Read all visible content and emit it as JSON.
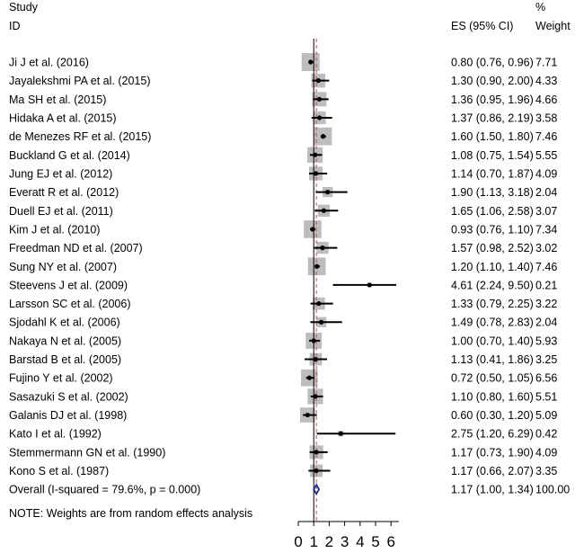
{
  "chart_data": {
    "type": "forest",
    "header": {
      "study_line1": "Study",
      "study_line2": "ID",
      "es_label": "ES (95% CI)",
      "weight_line1": "%",
      "weight_line2": "Weight"
    },
    "studies": [
      {
        "label": "Ji J et al. (2016)",
        "es": 0.8,
        "lo": 0.76,
        "hi": 0.96,
        "weight": 7.71,
        "ci_text": "0.80 (0.76, 0.96)",
        "weight_text": "7.71"
      },
      {
        "label": "Jayalekshmi PA et al. (2015)",
        "es": 1.3,
        "lo": 0.9,
        "hi": 2.0,
        "weight": 4.33,
        "ci_text": "1.30 (0.90, 2.00)",
        "weight_text": "4.33"
      },
      {
        "label": "Ma SH et al. (2015)",
        "es": 1.36,
        "lo": 0.95,
        "hi": 1.96,
        "weight": 4.66,
        "ci_text": "1.36 (0.95, 1.96)",
        "weight_text": "4.66"
      },
      {
        "label": "Hidaka A et al. (2015)",
        "es": 1.37,
        "lo": 0.86,
        "hi": 2.19,
        "weight": 3.58,
        "ci_text": "1.37 (0.86, 2.19)",
        "weight_text": "3.58"
      },
      {
        "label": "de Menezes RF et al. (2015)",
        "es": 1.6,
        "lo": 1.5,
        "hi": 1.8,
        "weight": 7.46,
        "ci_text": "1.60 (1.50, 1.80)",
        "weight_text": "7.46"
      },
      {
        "label": "Buckland G et al. (2014)",
        "es": 1.08,
        "lo": 0.75,
        "hi": 1.54,
        "weight": 5.55,
        "ci_text": "1.08 (0.75, 1.54)",
        "weight_text": "5.55"
      },
      {
        "label": "Jung EJ et al. (2012)",
        "es": 1.14,
        "lo": 0.7,
        "hi": 1.87,
        "weight": 4.09,
        "ci_text": "1.14 (0.70, 1.87)",
        "weight_text": "4.09"
      },
      {
        "label": "Everatt R et al. (2012)",
        "es": 1.9,
        "lo": 1.13,
        "hi": 3.18,
        "weight": 2.04,
        "ci_text": "1.90 (1.13, 3.18)",
        "weight_text": "2.04"
      },
      {
        "label": "Duell EJ et al. (2011)",
        "es": 1.65,
        "lo": 1.06,
        "hi": 2.58,
        "weight": 3.07,
        "ci_text": "1.65 (1.06, 2.58)",
        "weight_text": "3.07"
      },
      {
        "label": "Kim J et al. (2010)",
        "es": 0.93,
        "lo": 0.76,
        "hi": 1.1,
        "weight": 7.34,
        "ci_text": "0.93 (0.76, 1.10)",
        "weight_text": "7.34"
      },
      {
        "label": "Freedman ND et al. (2007)",
        "es": 1.57,
        "lo": 0.98,
        "hi": 2.52,
        "weight": 3.02,
        "ci_text": "1.57 (0.98, 2.52)",
        "weight_text": "3.02"
      },
      {
        "label": "Sung NY et al. (2007)",
        "es": 1.2,
        "lo": 1.1,
        "hi": 1.4,
        "weight": 7.46,
        "ci_text": "1.20 (1.10, 1.40)",
        "weight_text": "7.46"
      },
      {
        "label": "Steevens J et al. (2009)",
        "es": 4.61,
        "lo": 2.24,
        "hi": 9.5,
        "weight": 0.21,
        "ci_text": "4.61 (2.24, 9.50)",
        "weight_text": "0.21"
      },
      {
        "label": "Larsson SC et al. (2006)",
        "es": 1.33,
        "lo": 0.79,
        "hi": 2.25,
        "weight": 3.22,
        "ci_text": "1.33 (0.79, 2.25)",
        "weight_text": "3.22"
      },
      {
        "label": "Sjodahl K et al. (2006)",
        "es": 1.49,
        "lo": 0.78,
        "hi": 2.83,
        "weight": 2.04,
        "ci_text": "1.49 (0.78, 2.83)",
        "weight_text": "2.04"
      },
      {
        "label": "Nakaya N et al. (2005)",
        "es": 1.0,
        "lo": 0.7,
        "hi": 1.4,
        "weight": 5.93,
        "ci_text": "1.00 (0.70, 1.40)",
        "weight_text": "5.93"
      },
      {
        "label": "Barstad B et al. (2005)",
        "es": 1.13,
        "lo": 0.41,
        "hi": 1.86,
        "weight": 3.25,
        "ci_text": "1.13 (0.41, 1.86)",
        "weight_text": "3.25"
      },
      {
        "label": "Fujino Y et al. (2002)",
        "es": 0.72,
        "lo": 0.5,
        "hi": 1.05,
        "weight": 6.56,
        "ci_text": "0.72 (0.50, 1.05)",
        "weight_text": "6.56"
      },
      {
        "label": "Sasazuki S et al. (2002)",
        "es": 1.1,
        "lo": 0.8,
        "hi": 1.6,
        "weight": 5.51,
        "ci_text": "1.10 (0.80, 1.60)",
        "weight_text": "5.51"
      },
      {
        "label": "Galanis DJ et al. (1998)",
        "es": 0.6,
        "lo": 0.3,
        "hi": 1.2,
        "weight": 5.09,
        "ci_text": "0.60 (0.30, 1.20)",
        "weight_text": "5.09"
      },
      {
        "label": "Kato I et al. (1992)",
        "es": 2.75,
        "lo": 1.2,
        "hi": 6.29,
        "weight": 0.42,
        "ci_text": "2.75 (1.20, 6.29)",
        "weight_text": "0.42"
      },
      {
        "label": "Stemmermann GN et al. (1990)",
        "es": 1.17,
        "lo": 0.73,
        "hi": 1.9,
        "weight": 4.09,
        "ci_text": "1.17 (0.73, 1.90)",
        "weight_text": "4.09"
      },
      {
        "label": "Kono S et al. (1987)",
        "es": 1.17,
        "lo": 0.66,
        "hi": 2.07,
        "weight": 3.35,
        "ci_text": "1.17 (0.66, 2.07)",
        "weight_text": "3.35"
      }
    ],
    "overall": {
      "label": "Overall  (I-squared = 79.6%, p = 0.000)",
      "es": 1.17,
      "lo": 1.0,
      "hi": 1.34,
      "ci_text": "1.17 (1.00, 1.34)",
      "weight_text": "100.00"
    },
    "note": "NOTE: Weights are from random effects analysis",
    "x_ticks": [
      0,
      1,
      2,
      3,
      4,
      5,
      6
    ],
    "x_tick_labels": [
      "0",
      "1",
      "2",
      "3",
      "4",
      "5",
      "6"
    ],
    "xlim": [
      0,
      6.5
    ],
    "reference_line": 1,
    "colors": {
      "box": "#bdbdbd",
      "line": "#000000",
      "diamond": "#1f2a8a",
      "overall_line": "#c0504d",
      "null_line": "#000000"
    }
  }
}
